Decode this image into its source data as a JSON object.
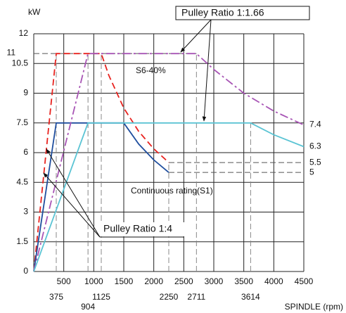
{
  "chart_data": {
    "type": "line",
    "y_label": "kW",
    "x_label": "SPINDLE (rpm)",
    "xlim": [
      0,
      4500
    ],
    "ylim": [
      0,
      12
    ],
    "xticks": [
      500,
      1000,
      1500,
      2000,
      2500,
      3000,
      3500,
      4000,
      4500
    ],
    "yticks": [
      0,
      1.5,
      3,
      4.5,
      6,
      7.5,
      9,
      10.5,
      12
    ],
    "grid": true,
    "x_markers": [
      375,
      904,
      1125,
      2250,
      2711,
      3614
    ],
    "left_value_labels": [
      11
    ],
    "right_value_labels": [
      7.4,
      6.3,
      5.5,
      5
    ],
    "series": [
      {
        "color": "#e8231f",
        "dash": "9 5",
        "x": [
          0,
          375,
          1125,
          1250,
          1500,
          1750,
          2000,
          2250
        ],
        "values": [
          0,
          11,
          11,
          9.9,
          8.25,
          7.07,
          6.19,
          5.5
        ]
      },
      {
        "color": "#1f4e9e",
        "dash": "",
        "x": [
          0,
          375,
          1500,
          1750,
          2000,
          2250
        ],
        "values": [
          0,
          7.5,
          7.5,
          6.43,
          5.63,
          5
        ]
      },
      {
        "color": "#a855b5",
        "dash": "12 4 3 4",
        "x": [
          0,
          904,
          2711,
          3000,
          3500,
          4000,
          4500
        ],
        "values": [
          0,
          11,
          11,
          10.2,
          9,
          8.1,
          7.4
        ]
      },
      {
        "color": "#5bc4d4",
        "dash": "",
        "x": [
          0,
          904,
          3614,
          4000,
          4500
        ],
        "values": [
          0,
          7.5,
          7.5,
          6.9,
          6.3
        ]
      }
    ],
    "annotations": [
      "Pulley Ratio  1:1.66",
      "S6-40%",
      "Continuous rating(S1)",
      "Pulley Ratio  1:4"
    ]
  }
}
